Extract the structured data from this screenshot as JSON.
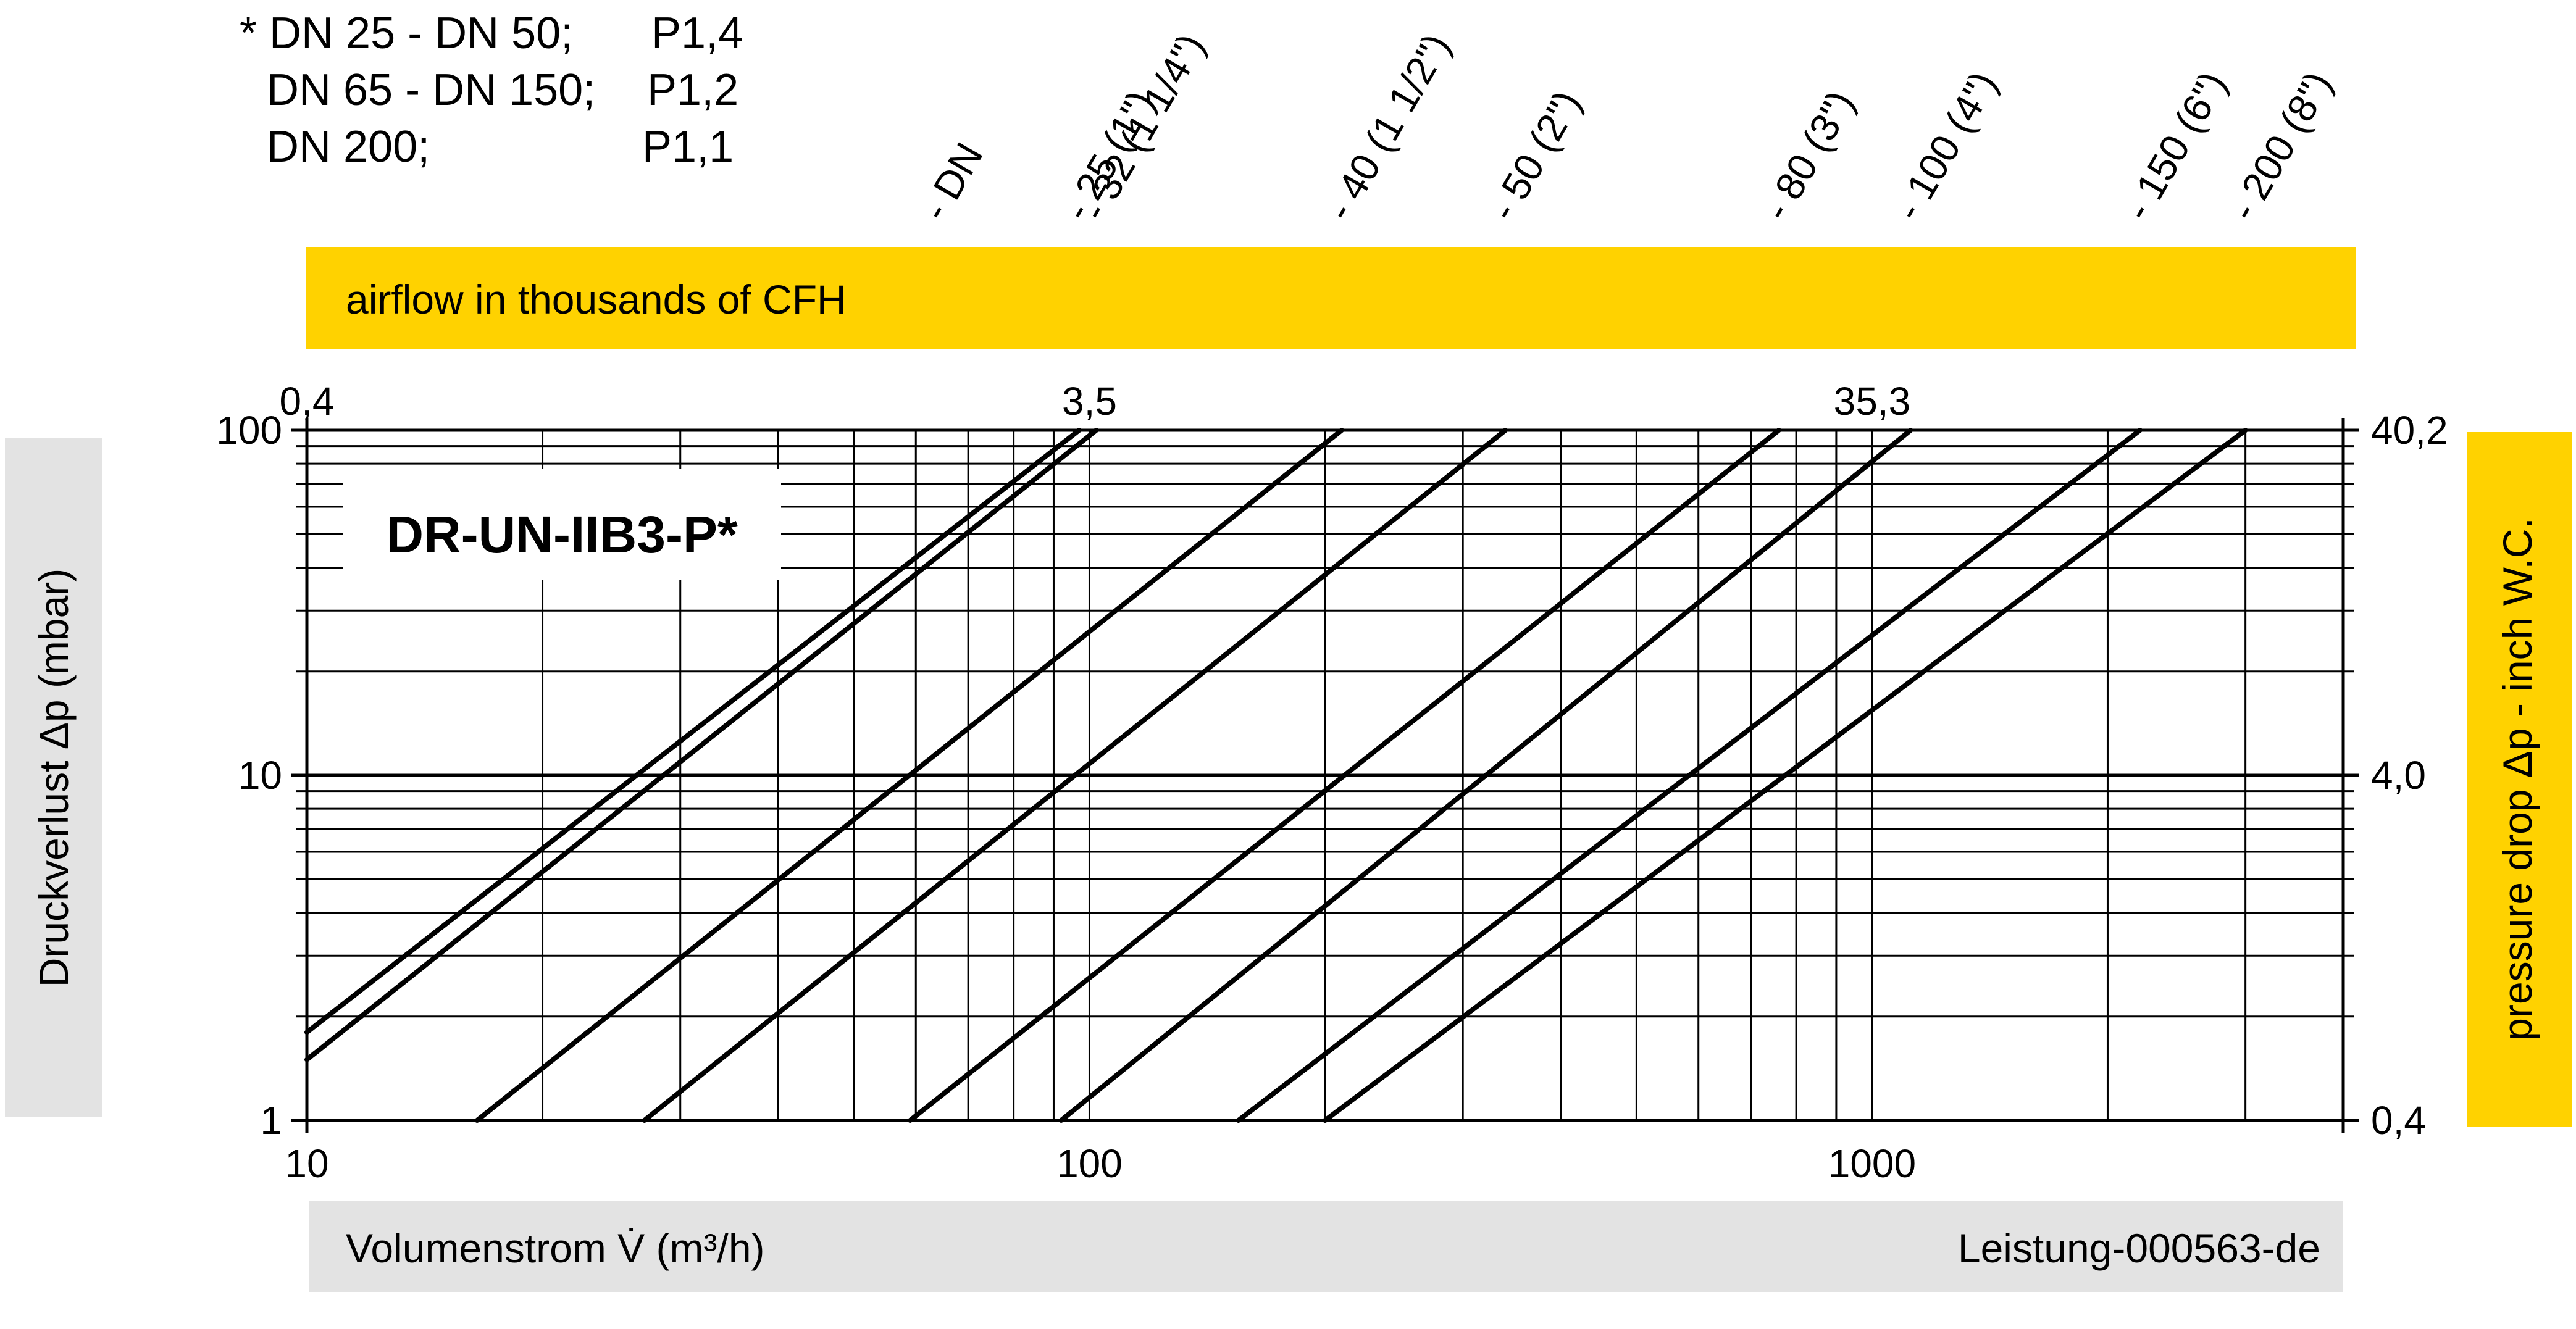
{
  "note": {
    "line1_left": "* DN 25 - DN 50;",
    "line1_right": "P1,4",
    "line2_left": "DN 65 - DN 150;",
    "line2_right": "P1,2",
    "line3_left": "DN 200;",
    "line3_right": "P1,1"
  },
  "product_label": "DR-UN-IIB3-P*",
  "top_axis_title": "airflow in thousands of CFH",
  "bottom_axis_title": "Volumenstrom V̇ (m³/h)",
  "doc_id": "Leistung-000563-de",
  "left_axis_title": "Druckverlust Δp (mbar)",
  "right_axis_title": "pressure drop Δp - inch W.C.",
  "dn_header": "- DN",
  "colors": {
    "yellow": "#FFD200",
    "grey": "#E3E3E3",
    "line": "#000000"
  },
  "chart_data": {
    "type": "line",
    "x_scale": "log",
    "y_scale": "log",
    "xlim": [
      10,
      4000
    ],
    "ylim": [
      1,
      100
    ],
    "grid": true,
    "x_ticks": [
      "10",
      "100",
      "1000"
    ],
    "x_tick_values": [
      10,
      100,
      1000
    ],
    "y_ticks": [
      "1",
      "10",
      "100"
    ],
    "y_tick_values": [
      1,
      10,
      100
    ],
    "top_ticks": [
      "0,4",
      "3,5",
      "35,3"
    ],
    "top_tick_values": [
      10,
      100,
      1000
    ],
    "right_ticks": [
      "0,4",
      "4,0",
      "40,2"
    ],
    "right_tick_values": [
      1,
      10,
      100
    ],
    "series": [
      {
        "name": "- 25 (1\")",
        "points": [
          [
            10,
            1.8
          ],
          [
            97,
            100
          ]
        ]
      },
      {
        "name": "- 32 (1 1/4\")",
        "points": [
          [
            10,
            1.5
          ],
          [
            102,
            100
          ]
        ]
      },
      {
        "name": "- 40 (1 1/2\")",
        "points": [
          [
            16.5,
            1
          ],
          [
            210,
            100
          ]
        ]
      },
      {
        "name": "- 50 (2\")",
        "points": [
          [
            27,
            1
          ],
          [
            340,
            100
          ]
        ]
      },
      {
        "name": "- 80 (3\")",
        "points": [
          [
            59,
            1
          ],
          [
            760,
            100
          ]
        ]
      },
      {
        "name": "- 100 (4\")",
        "points": [
          [
            92,
            1
          ],
          [
            1120,
            100
          ]
        ]
      },
      {
        "name": "- 150 (6\")",
        "points": [
          [
            155,
            1
          ],
          [
            2200,
            100
          ]
        ]
      },
      {
        "name": "- 200 (8\")",
        "points": [
          [
            200,
            1
          ],
          [
            3000,
            100
          ]
        ]
      }
    ]
  }
}
